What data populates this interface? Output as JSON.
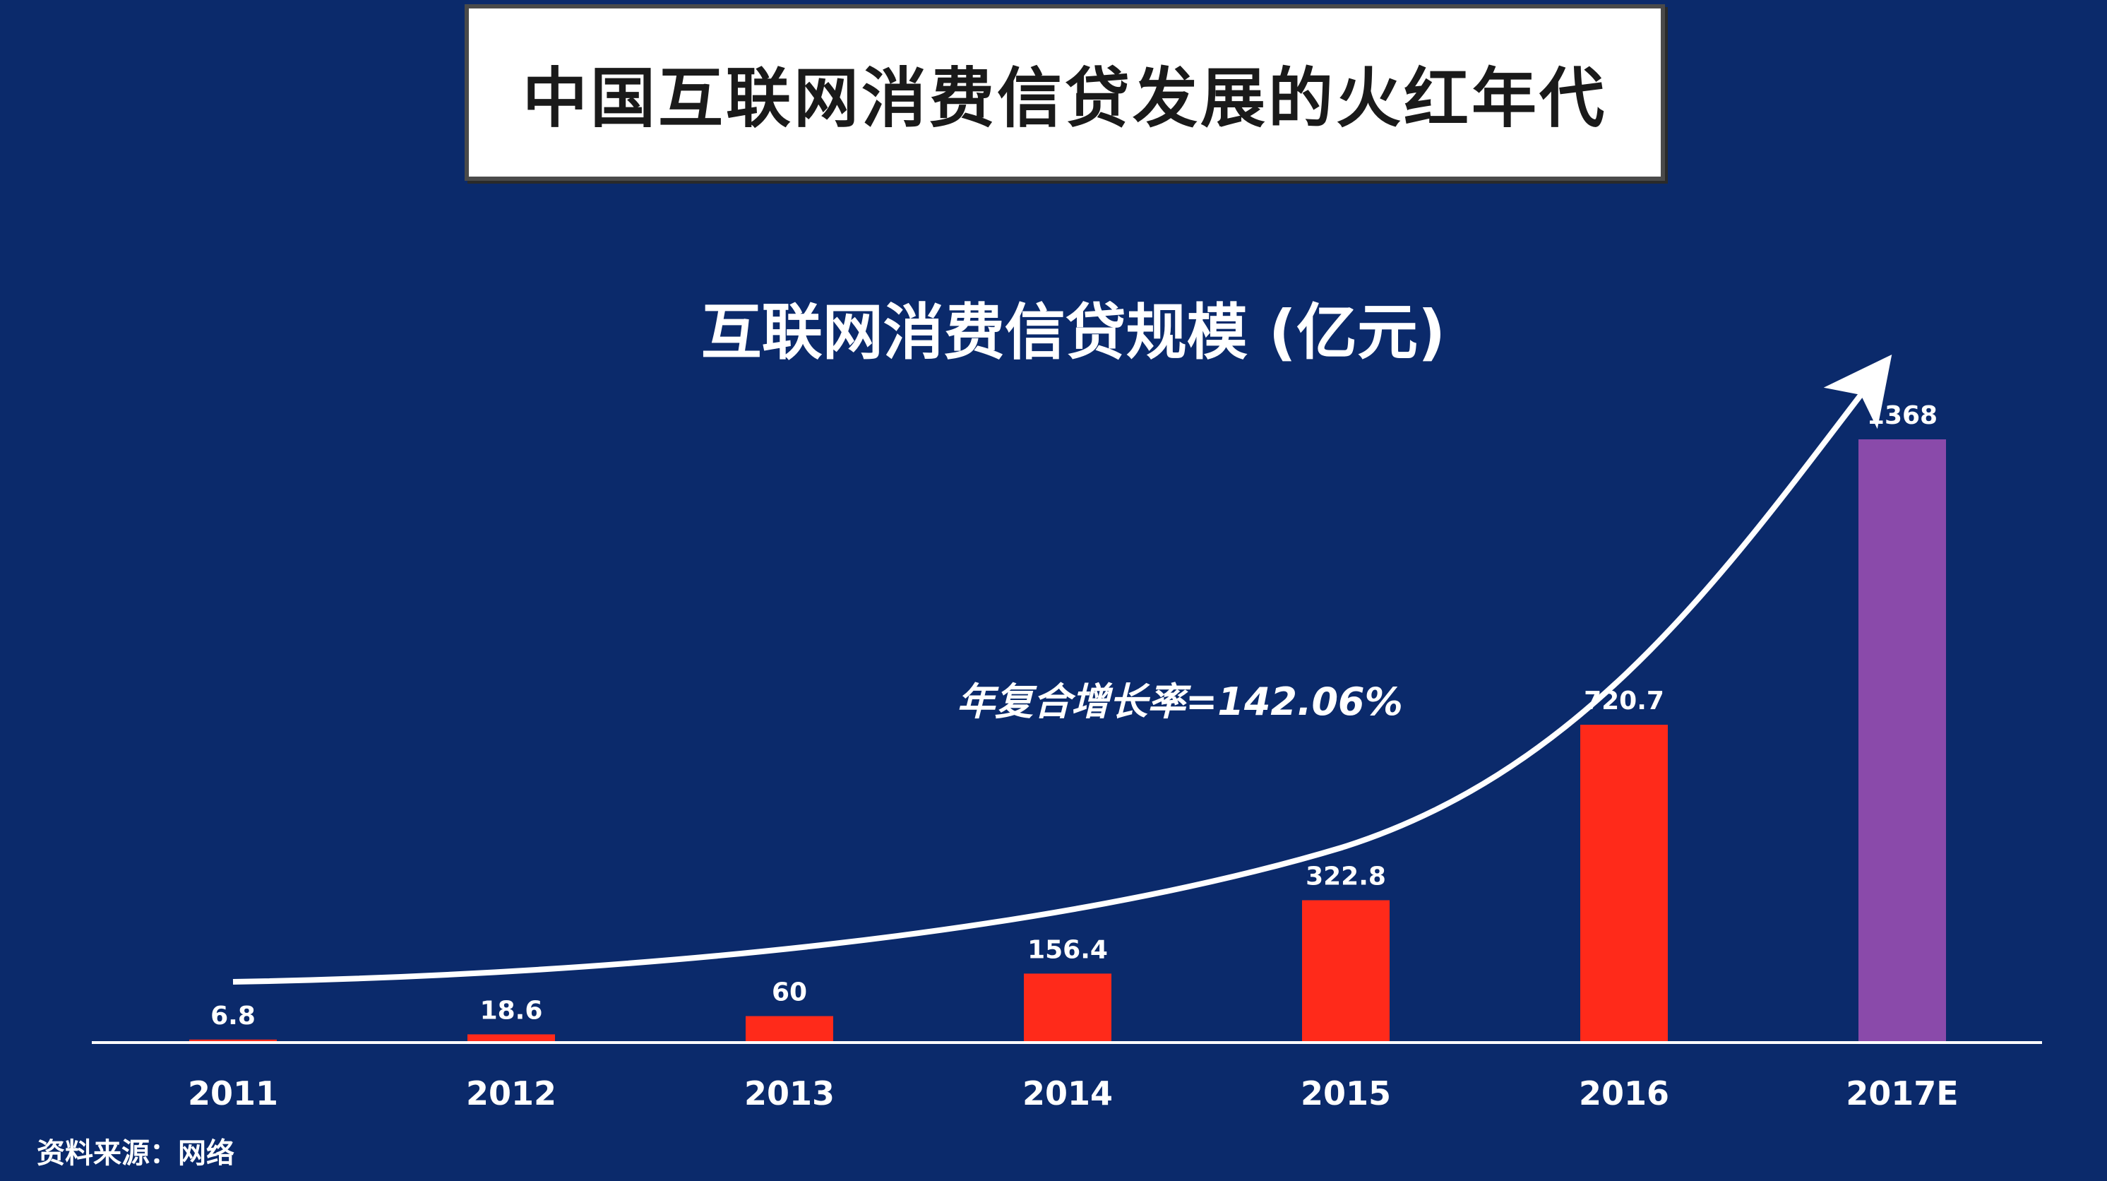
{
  "header": {
    "title": "中国互联网消费信贷发展的火红年代"
  },
  "chart_data": {
    "type": "bar",
    "title": "互联网消费信贷规模 (亿元)",
    "categories": [
      "2011",
      "2012",
      "2013",
      "2014",
      "2015",
      "2016",
      "2017E"
    ],
    "values": [
      6.8,
      18.6,
      60,
      156.4,
      322.8,
      720.7,
      1368
    ],
    "value_labels": [
      "6.8",
      "18.6",
      "60",
      "156.4",
      "322.8",
      "720.7",
      "1368"
    ],
    "ylim": [
      0,
      1368
    ],
    "grid": false,
    "colors": {
      "actual": "#ff2a1a",
      "estimate": "#8a4aaa",
      "axis": "#ffffff"
    },
    "annotation": "年复合增长率=142.06%"
  },
  "footer": {
    "source": "资料来源：网络"
  }
}
